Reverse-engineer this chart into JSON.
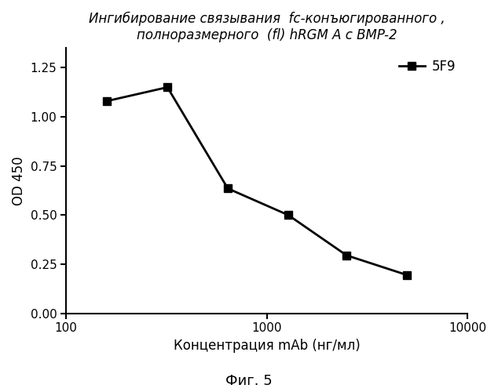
{
  "title_line1": "Ингибирование связывания  fc-конъюгированного ,",
  "title_line2": "полноразмерного  (fl) hRGM A с BMP-2",
  "xlabel": "Концентрация mAb (нг/мл)",
  "ylabel": "OD 450",
  "caption": "Фиг. 5",
  "legend_label": "5F9",
  "x_data": [
    160,
    320,
    640,
    1280,
    2500,
    5000
  ],
  "y_data": [
    1.08,
    1.15,
    0.635,
    0.5,
    0.295,
    0.195
  ],
  "xlim": [
    100,
    10000
  ],
  "ylim": [
    0.0,
    1.35
  ],
  "yticks": [
    0.0,
    0.25,
    0.5,
    0.75,
    1.0,
    1.25
  ],
  "xticks": [
    100,
    1000,
    10000
  ],
  "line_color": "#000000",
  "marker": "s",
  "marker_size": 7,
  "line_width": 2.0,
  "background_color": "#ffffff",
  "title_fontsize": 12,
  "label_fontsize": 12,
  "tick_fontsize": 11,
  "legend_fontsize": 12,
  "caption_fontsize": 13
}
